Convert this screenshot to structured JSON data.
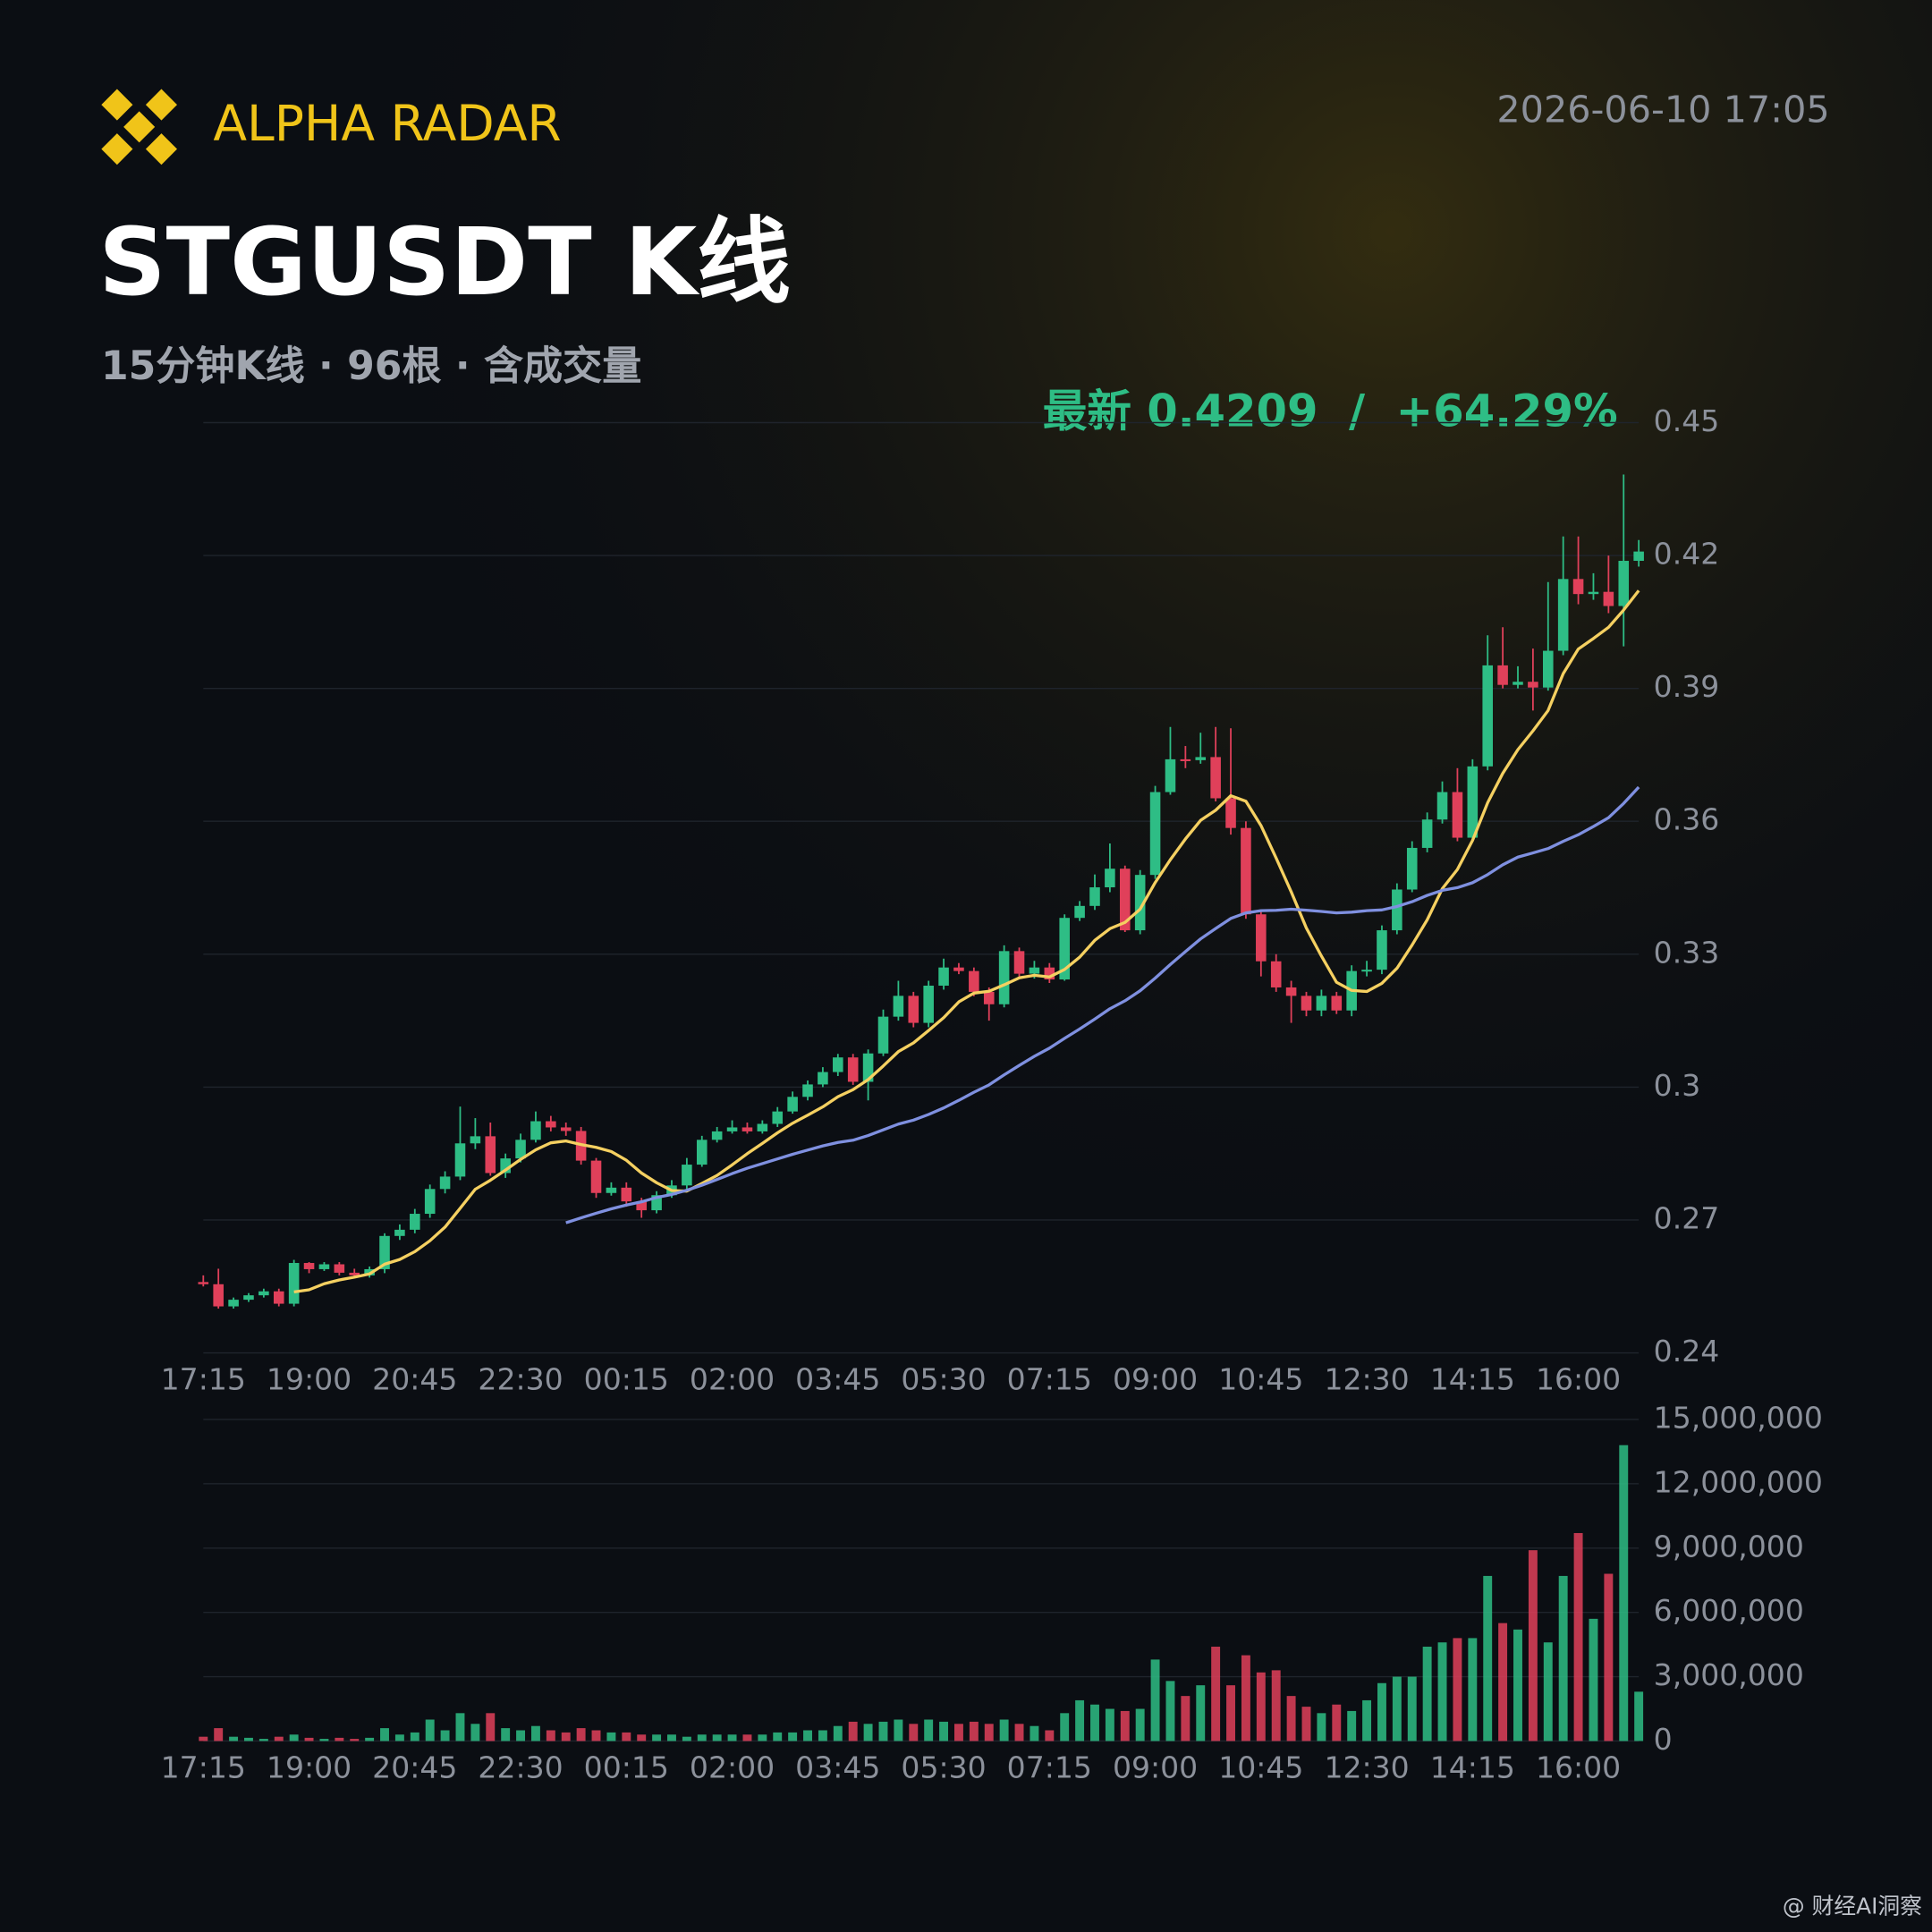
{
  "header": {
    "brand": "ALPHA RADAR",
    "timestamp": "2026-06-10 17:05",
    "title": "STGUSDT K线",
    "subtitle": "15分钟K线 · 96根 · 含成交量",
    "latest": "最新 0.4209  /  +64.29%"
  },
  "watermark": "@ 财经AI洞察",
  "chart_data": {
    "type": "candlestick",
    "categories": [
      "17:15",
      null,
      null,
      null,
      null,
      null,
      null,
      "19:00",
      null,
      null,
      null,
      null,
      null,
      null,
      "20:45",
      null,
      null,
      null,
      null,
      null,
      null,
      "22:30",
      null,
      null,
      null,
      null,
      null,
      null,
      "00:15",
      null,
      null,
      null,
      null,
      null,
      null,
      "02:00",
      null,
      null,
      null,
      null,
      null,
      null,
      "03:45",
      null,
      null,
      null,
      null,
      null,
      null,
      "05:30",
      null,
      null,
      null,
      null,
      null,
      null,
      "07:15",
      null,
      null,
      null,
      null,
      null,
      null,
      "09:00",
      null,
      null,
      null,
      null,
      null,
      null,
      "10:45",
      null,
      null,
      null,
      null,
      null,
      null,
      "12:30",
      null,
      null,
      null,
      null,
      null,
      null,
      "14:15",
      null,
      null,
      null,
      null,
      null,
      null,
      "16:00",
      null,
      null,
      null,
      null
    ],
    "open": [
      0.256,
      0.2555,
      0.2505,
      0.252,
      0.253,
      0.2539,
      0.2511,
      0.2603,
      0.2589,
      0.26,
      0.2581,
      0.2575,
      0.2589,
      0.2664,
      0.2678,
      0.2714,
      0.277,
      0.2798,
      0.2873,
      0.2889,
      0.2806,
      0.2839,
      0.2881,
      0.2923,
      0.2909,
      0.2901,
      0.2834,
      0.2761,
      0.2773,
      0.2742,
      0.2722,
      0.2756,
      0.2778,
      0.2825,
      0.2881,
      0.29,
      0.2909,
      0.29,
      0.2917,
      0.2945,
      0.2978,
      0.3006,
      0.3034,
      0.3067,
      0.3012,
      0.3076,
      0.3159,
      0.3206,
      0.3145,
      0.3229,
      0.327,
      0.3262,
      0.3215,
      0.3187,
      0.3307,
      0.3256,
      0.327,
      0.3243,
      0.3382,
      0.3409,
      0.3451,
      0.3493,
      0.3354,
      0.3479,
      0.3666,
      0.374,
      0.3738,
      0.3745,
      0.3652,
      0.3585,
      0.339,
      0.3284,
      0.3225,
      0.3206,
      0.3173,
      0.3206,
      0.3173,
      0.3262,
      0.3265,
      0.3354,
      0.3446,
      0.354,
      0.3604,
      0.3666,
      0.3563,
      0.3724,
      0.3952,
      0.3908,
      0.3915,
      0.3902,
      0.3985,
      0.4147,
      0.4113,
      0.4118,
      0.4086,
      0.4188
    ],
    "high": [
      0.2575,
      0.259,
      0.2525,
      0.2535,
      0.2545,
      0.2545,
      0.261,
      0.2605,
      0.2605,
      0.2605,
      0.259,
      0.2595,
      0.267,
      0.269,
      0.2725,
      0.278,
      0.281,
      0.2956,
      0.293,
      0.292,
      0.285,
      0.2895,
      0.2945,
      0.2935,
      0.292,
      0.291,
      0.284,
      0.2785,
      0.2785,
      0.275,
      0.2765,
      0.279,
      0.284,
      0.289,
      0.291,
      0.2925,
      0.292,
      0.2925,
      0.2955,
      0.299,
      0.3015,
      0.3045,
      0.3075,
      0.3075,
      0.3085,
      0.3175,
      0.324,
      0.3215,
      0.324,
      0.329,
      0.328,
      0.327,
      0.3225,
      0.332,
      0.3315,
      0.3285,
      0.328,
      0.339,
      0.342,
      0.348,
      0.355,
      0.35,
      0.349,
      0.368,
      0.3813,
      0.377,
      0.38,
      0.3813,
      0.381,
      0.36,
      0.34,
      0.33,
      0.324,
      0.3215,
      0.322,
      0.3215,
      0.3275,
      0.3285,
      0.3365,
      0.346,
      0.3555,
      0.362,
      0.369,
      0.372,
      0.374,
      0.402,
      0.4038,
      0.395,
      0.399,
      0.414,
      0.4243,
      0.4243,
      0.416,
      0.42,
      0.4383,
      0.4235
    ],
    "low": [
      0.255,
      0.25,
      0.25,
      0.2515,
      0.2525,
      0.2505,
      0.2505,
      0.258,
      0.2585,
      0.2575,
      0.257,
      0.257,
      0.258,
      0.2655,
      0.267,
      0.2705,
      0.276,
      0.279,
      0.286,
      0.28,
      0.2795,
      0.283,
      0.2875,
      0.29,
      0.289,
      0.2825,
      0.275,
      0.2755,
      0.273,
      0.2705,
      0.2715,
      0.275,
      0.277,
      0.282,
      0.2875,
      0.2895,
      0.2895,
      0.2895,
      0.291,
      0.294,
      0.297,
      0.3,
      0.3025,
      0.3005,
      0.297,
      0.307,
      0.315,
      0.3135,
      0.3135,
      0.322,
      0.3255,
      0.3205,
      0.315,
      0.318,
      0.3245,
      0.3245,
      0.3235,
      0.324,
      0.3375,
      0.34,
      0.344,
      0.335,
      0.3345,
      0.347,
      0.366,
      0.372,
      0.373,
      0.3645,
      0.357,
      0.338,
      0.325,
      0.3215,
      0.3145,
      0.316,
      0.316,
      0.3165,
      0.316,
      0.325,
      0.3255,
      0.3345,
      0.344,
      0.353,
      0.3595,
      0.3555,
      0.3555,
      0.3715,
      0.39,
      0.39,
      0.385,
      0.3895,
      0.3975,
      0.409,
      0.41,
      0.407,
      0.3995,
      0.4175
    ],
    "close": [
      0.2555,
      0.2505,
      0.252,
      0.253,
      0.2539,
      0.2511,
      0.2603,
      0.2589,
      0.26,
      0.2581,
      0.2575,
      0.2589,
      0.2664,
      0.2678,
      0.2714,
      0.277,
      0.2798,
      0.2873,
      0.2889,
      0.2806,
      0.2839,
      0.2881,
      0.2923,
      0.2909,
      0.2901,
      0.2834,
      0.2761,
      0.2773,
      0.2742,
      0.2722,
      0.2756,
      0.2778,
      0.2825,
      0.2881,
      0.29,
      0.2909,
      0.29,
      0.2917,
      0.2945,
      0.2978,
      0.3006,
      0.3034,
      0.3067,
      0.3012,
      0.3076,
      0.3159,
      0.3206,
      0.3145,
      0.3229,
      0.327,
      0.3262,
      0.3215,
      0.3187,
      0.3307,
      0.3256,
      0.327,
      0.3243,
      0.3382,
      0.3409,
      0.3451,
      0.3493,
      0.3354,
      0.3479,
      0.3666,
      0.374,
      0.3738,
      0.3745,
      0.3652,
      0.3585,
      0.339,
      0.3284,
      0.3225,
      0.3206,
      0.3173,
      0.3206,
      0.3173,
      0.3262,
      0.3265,
      0.3354,
      0.3446,
      0.354,
      0.3604,
      0.3666,
      0.3563,
      0.3724,
      0.3952,
      0.3908,
      0.3915,
      0.3902,
      0.3985,
      0.4147,
      0.4113,
      0.4118,
      0.4086,
      0.4188,
      0.4209
    ],
    "up_color": "#2ebd85",
    "down_color": "#e0405a",
    "moving_averages": [
      {
        "period": 7,
        "color": "#f5d061"
      },
      {
        "period": 25,
        "color": "#7f90e0"
      }
    ],
    "ylim": [
      0.24,
      0.45
    ],
    "yticks": [
      0.24,
      0.27,
      0.3,
      0.33,
      0.36,
      0.39,
      0.42,
      0.45
    ],
    "grid": true,
    "volume": {
      "values": [
        200000,
        600000,
        200000,
        150000,
        100000,
        200000,
        300000,
        150000,
        100000,
        150000,
        100000,
        150000,
        600000,
        300000,
        400000,
        1000000,
        500000,
        1300000,
        800000,
        1300000,
        600000,
        500000,
        700000,
        500000,
        400000,
        600000,
        500000,
        400000,
        400000,
        300000,
        300000,
        300000,
        200000,
        300000,
        300000,
        300000,
        300000,
        300000,
        400000,
        400000,
        500000,
        500000,
        700000,
        900000,
        800000,
        900000,
        1000000,
        800000,
        1000000,
        900000,
        800000,
        900000,
        800000,
        1000000,
        800000,
        700000,
        500000,
        1300000,
        1900000,
        1700000,
        1500000,
        1400000,
        1500000,
        3800000,
        2800000,
        2100000,
        2600000,
        4400000,
        2600000,
        4000000,
        3200000,
        3300000,
        2100000,
        1600000,
        1300000,
        1700000,
        1400000,
        1900000,
        2700000,
        3000000,
        3000000,
        4400000,
        4600000,
        4800000,
        4800000,
        7700000,
        5500000,
        5200000,
        8900000,
        4600000,
        7700000,
        9700000,
        5700000,
        7800000,
        13800000,
        2300000
      ],
      "ylim": [
        0,
        15000000
      ],
      "yticks": [
        0,
        {
          "value": 3000000,
          "label": "3,000,000"
        },
        {
          "value": 6000000,
          "label": "6,000,000"
        },
        {
          "value": 9000000,
          "label": "9,000,000"
        },
        {
          "value": 12000000,
          "label": "12,000,000"
        },
        {
          "value": 15000000,
          "label": "15,000,000"
        }
      ]
    }
  }
}
